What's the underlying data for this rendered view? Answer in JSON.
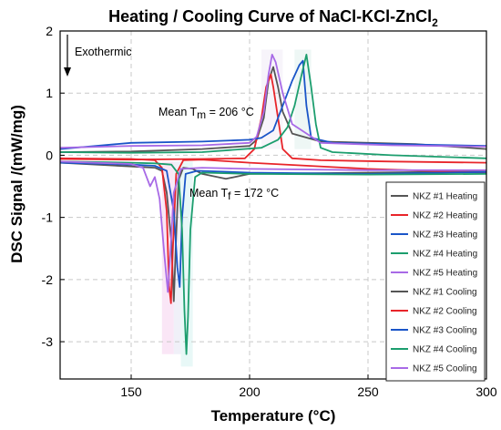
{
  "chart_data": {
    "type": "line",
    "title": "Heating / Cooling Curve of NaCl-KCl-ZnCl",
    "title_subscript": "2",
    "xlabel": "Temperature (°C)",
    "ylabel": "DSC Signal /(mW/mg)",
    "xlim": [
      120,
      300
    ],
    "ylim": [
      -3.6,
      2.0
    ],
    "xticks": [
      150,
      200,
      250,
      300
    ],
    "yticks": [
      -3,
      -2,
      -1,
      0,
      1,
      2
    ],
    "grid": true,
    "legend_position": "bottom-right",
    "annotations": {
      "exothermic": "Exothermic",
      "tm_prefix": "Mean T",
      "tm_sub": "m",
      "tm_value": " = 206 °C",
      "tf_prefix": "Mean T",
      "tf_sub": "f",
      "tf_value": " = 172 °C"
    },
    "series": [
      {
        "name": "NKZ #1 Heating",
        "color": "#555555",
        "points": [
          [
            120,
            -0.12
          ],
          [
            150,
            -0.18
          ],
          [
            160,
            -0.2
          ],
          [
            163,
            -0.25
          ],
          [
            165,
            -0.6
          ],
          [
            167,
            -1.4
          ],
          [
            168,
            -2.35
          ],
          [
            169,
            -1.3
          ],
          [
            170,
            -0.4
          ],
          [
            172,
            -0.2
          ],
          [
            176,
            -0.22
          ],
          [
            180,
            -0.3
          ],
          [
            190,
            -0.38
          ],
          [
            200,
            -0.3
          ],
          [
            250,
            -0.28
          ],
          [
            300,
            -0.26
          ]
        ]
      },
      {
        "name": "NKZ #2 Heating",
        "color": "#e8252a",
        "points": [
          [
            120,
            -0.05
          ],
          [
            150,
            -0.06
          ],
          [
            160,
            -0.08
          ],
          [
            163,
            -0.2
          ],
          [
            165,
            -0.9
          ],
          [
            166,
            -2.1
          ],
          [
            166.8,
            -2.38
          ],
          [
            167.5,
            -1.6
          ],
          [
            169,
            -0.3
          ],
          [
            172,
            -0.08
          ],
          [
            180,
            -0.07
          ],
          [
            200,
            -0.12
          ],
          [
            250,
            -0.22
          ],
          [
            300,
            -0.28
          ]
        ]
      },
      {
        "name": "NKZ #3 Heating",
        "color": "#1a55c8",
        "points": [
          [
            120,
            -0.12
          ],
          [
            150,
            -0.15
          ],
          [
            160,
            -0.17
          ],
          [
            165,
            -0.25
          ],
          [
            168,
            -0.9
          ],
          [
            169.5,
            -1.8
          ],
          [
            170.5,
            -2.12
          ],
          [
            171.5,
            -1.0
          ],
          [
            173,
            -0.3
          ],
          [
            178,
            -0.25
          ],
          [
            200,
            -0.28
          ],
          [
            250,
            -0.3
          ],
          [
            300,
            -0.27
          ]
        ]
      },
      {
        "name": "NKZ #4 Heating",
        "color": "#1c9e6e",
        "points": [
          [
            120,
            -0.1
          ],
          [
            150,
            -0.12
          ],
          [
            160,
            -0.13
          ],
          [
            167,
            -0.15
          ],
          [
            170,
            -0.3
          ],
          [
            171.5,
            -1.2
          ],
          [
            172.5,
            -2.5
          ],
          [
            173.3,
            -3.2
          ],
          [
            174,
            -2.6
          ],
          [
            175,
            -1.2
          ],
          [
            177,
            -0.35
          ],
          [
            180,
            -0.28
          ],
          [
            200,
            -0.3
          ],
          [
            250,
            -0.31
          ],
          [
            300,
            -0.3
          ]
        ]
      },
      {
        "name": "NKZ #5 Heating",
        "color": "#a86ae6",
        "points": [
          [
            120,
            -0.1
          ],
          [
            150,
            -0.14
          ],
          [
            155,
            -0.2
          ],
          [
            158,
            -0.5
          ],
          [
            160,
            -0.35
          ],
          [
            162,
            -0.7
          ],
          [
            164,
            -1.6
          ],
          [
            165.5,
            -2.2
          ],
          [
            166.5,
            -1.6
          ],
          [
            168,
            -0.6
          ],
          [
            171,
            -0.22
          ],
          [
            180,
            -0.2
          ],
          [
            200,
            -0.22
          ],
          [
            250,
            -0.24
          ],
          [
            300,
            -0.24
          ]
        ]
      },
      {
        "name": "NKZ #1 Cooling",
        "color": "#555555",
        "points": [
          [
            300,
            0.1
          ],
          [
            270,
            0.18
          ],
          [
            230,
            0.22
          ],
          [
            218,
            0.35
          ],
          [
            214,
            0.7
          ],
          [
            212,
            1.1
          ],
          [
            210,
            1.42
          ],
          [
            208,
            1.2
          ],
          [
            206,
            0.6
          ],
          [
            203,
            0.25
          ],
          [
            200,
            0.15
          ],
          [
            180,
            0.1
          ],
          [
            150,
            0.06
          ],
          [
            120,
            0.05
          ]
        ]
      },
      {
        "name": "NKZ #2 Cooling",
        "color": "#e8252a",
        "points": [
          [
            300,
            -0.12
          ],
          [
            260,
            -0.1
          ],
          [
            230,
            -0.08
          ],
          [
            218,
            -0.05
          ],
          [
            214,
            0.1
          ],
          [
            212,
            0.6
          ],
          [
            210,
            1.1
          ],
          [
            209,
            1.3
          ],
          [
            207,
            1.1
          ],
          [
            205,
            0.6
          ],
          [
            202,
            0.1
          ],
          [
            198,
            -0.05
          ],
          [
            180,
            -0.06
          ],
          [
            150,
            -0.07
          ],
          [
            120,
            -0.06
          ]
        ]
      },
      {
        "name": "NKZ #3 Cooling",
        "color": "#1a55c8",
        "points": [
          [
            300,
            0.15
          ],
          [
            260,
            0.18
          ],
          [
            235,
            0.2
          ],
          [
            226,
            0.28
          ],
          [
            224,
            0.8
          ],
          [
            222.5,
            1.52
          ],
          [
            221,
            1.45
          ],
          [
            218,
            1.2
          ],
          [
            214,
            0.8
          ],
          [
            210,
            0.4
          ],
          [
            205,
            0.28
          ],
          [
            200,
            0.25
          ],
          [
            180,
            0.22
          ],
          [
            150,
            0.2
          ],
          [
            120,
            0.1
          ]
        ]
      },
      {
        "name": "NKZ #4 Cooling",
        "color": "#1c9e6e",
        "points": [
          [
            300,
            -0.05
          ],
          [
            260,
            0.0
          ],
          [
            235,
            0.05
          ],
          [
            230,
            0.12
          ],
          [
            228,
            0.5
          ],
          [
            226,
            1.1
          ],
          [
            224,
            1.62
          ],
          [
            222,
            1.3
          ],
          [
            219,
            0.8
          ],
          [
            216,
            0.45
          ],
          [
            212,
            0.25
          ],
          [
            205,
            0.12
          ],
          [
            180,
            0.05
          ],
          [
            150,
            0.04
          ],
          [
            120,
            0.05
          ]
        ]
      },
      {
        "name": "NKZ #5 Cooling",
        "color": "#a86ae6",
        "points": [
          [
            300,
            0.14
          ],
          [
            260,
            0.16
          ],
          [
            230,
            0.2
          ],
          [
            218,
            0.5
          ],
          [
            214,
            1.0
          ],
          [
            211,
            1.5
          ],
          [
            209.5,
            1.62
          ],
          [
            208,
            1.3
          ],
          [
            206,
            0.7
          ],
          [
            203,
            0.3
          ],
          [
            200,
            0.2
          ],
          [
            180,
            0.16
          ],
          [
            150,
            0.15
          ],
          [
            120,
            0.12
          ]
        ]
      }
    ]
  }
}
